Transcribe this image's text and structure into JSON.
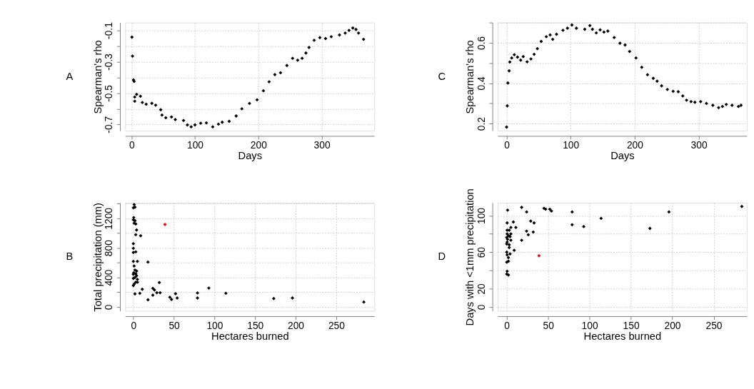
{
  "chart_data": [
    {
      "type": "scatter",
      "xlabel": "Days",
      "ylabel": "Spearman's rho",
      "annotations": [
        "A"
      ],
      "marker": "diamond",
      "grid": true,
      "xlim": [
        -10,
        383
      ],
      "xticks": [
        0,
        100,
        200,
        300
      ],
      "ylim": [
        -0.74,
        -0.05
      ],
      "yticks": [
        -0.1,
        {
          "value": -0.2,
          "label": null
        },
        -0.3,
        {
          "value": -0.4,
          "label": null
        },
        -0.5,
        {
          "value": -0.6,
          "label": null
        },
        -0.7
      ],
      "series": [
        {
          "color": "#000000",
          "x": [
            0.6,
            1.5,
            3,
            4,
            5,
            5,
            8,
            14,
            17,
            23,
            32,
            38,
            46,
            48,
            54,
            63,
            69,
            82,
            88,
            94,
            100,
            109,
            118,
            128,
            137,
            143,
            154,
            165,
            174,
            186,
            198,
            208,
            217,
            226,
            235,
            245,
            254,
            262,
            269,
            275,
            280,
            288,
            297,
            306,
            315,
            328,
            337,
            343,
            349,
            354,
            358,
            366
          ],
          "values": [
            -0.143,
            -0.264,
            -0.416,
            -0.425,
            -0.525,
            -0.552,
            -0.508,
            -0.52,
            -0.56,
            -0.571,
            -0.565,
            -0.577,
            -0.606,
            -0.64,
            -0.657,
            -0.652,
            -0.669,
            -0.675,
            -0.703,
            -0.715,
            -0.703,
            -0.692,
            -0.69,
            -0.715,
            -0.698,
            -0.686,
            -0.68,
            -0.646,
            -0.6,
            -0.566,
            -0.543,
            -0.485,
            -0.428,
            -0.382,
            -0.37,
            -0.324,
            -0.278,
            -0.29,
            -0.278,
            -0.244,
            -0.209,
            -0.163,
            -0.146,
            -0.152,
            -0.14,
            -0.129,
            -0.117,
            -0.1,
            -0.085,
            -0.094,
            -0.117,
            -0.157
          ]
        }
      ]
    },
    {
      "type": "scatter",
      "xlabel": "Days",
      "ylabel": "Spearman's rho",
      "annotations": [
        "C"
      ],
      "marker": "diamond",
      "grid": true,
      "xlim": [
        -14,
        375
      ],
      "xticks": [
        0,
        100,
        200,
        300
      ],
      "ylim": [
        0.165,
        0.7
      ],
      "yticks": [
        0.2,
        {
          "value": 0.3,
          "label": null
        },
        0.4,
        {
          "value": 0.5,
          "label": null
        },
        0.6,
        {
          "value": 0.7,
          "label": null
        }
      ],
      "series": [
        {
          "color": "#000000",
          "x": [
            0,
            1,
            2,
            4,
            5,
            8,
            12,
            17,
            22,
            26,
            32,
            38,
            43,
            48,
            54,
            62,
            68,
            72,
            78,
            88,
            95,
            102,
            109,
            122,
            130,
            134,
            140,
            146,
            152,
            158,
            168,
            177,
            185,
            192,
            202,
            211,
            220,
            229,
            235,
            242,
            251,
            260,
            268,
            275,
            281,
            288,
            294,
            303,
            312,
            322,
            331,
            337,
            343,
            352,
            362,
            366
          ],
          "values": [
            0.183,
            0.288,
            0.401,
            0.461,
            0.505,
            0.525,
            0.541,
            0.529,
            0.514,
            0.532,
            0.506,
            0.52,
            0.543,
            0.571,
            0.607,
            0.63,
            0.639,
            0.617,
            0.642,
            0.662,
            0.672,
            0.688,
            0.672,
            0.667,
            0.685,
            0.667,
            0.649,
            0.664,
            0.653,
            0.658,
            0.626,
            0.598,
            0.589,
            0.557,
            0.525,
            0.479,
            0.442,
            0.424,
            0.41,
            0.387,
            0.369,
            0.36,
            0.358,
            0.337,
            0.316,
            0.309,
            0.306,
            0.309,
            0.3,
            0.291,
            0.279,
            0.285,
            0.295,
            0.291,
            0.285,
            0.291
          ]
        }
      ]
    },
    {
      "type": "scatter",
      "xlabel": "Hectares burned",
      "ylabel": "Total precipitation (mm)",
      "annotations": [
        "B"
      ],
      "marker": "diamond",
      "grid": true,
      "xlim": [
        -10,
        297
      ],
      "xticks": [
        0,
        50,
        100,
        150,
        200,
        250
      ],
      "ylim": [
        -55,
        1410
      ],
      "yticks": [
        0,
        {
          "value": 200,
          "label": null
        },
        400,
        {
          "value": 600,
          "label": null
        },
        800,
        {
          "value": 1000,
          "label": null
        },
        1200,
        {
          "value": 1400,
          "label": null
        }
      ],
      "series": [
        {
          "color": "#000000",
          "x": [
            1,
            0,
            2,
            0.5,
            0,
            2,
            1,
            3,
            4,
            3,
            9,
            0,
            0,
            3,
            0,
            0,
            5,
            18,
            1,
            2,
            4,
            0.5,
            3,
            0,
            4,
            2,
            5,
            0,
            3,
            5,
            1,
            0,
            32,
            11,
            24,
            26,
            29,
            24,
            33,
            2,
            8,
            18,
            45,
            47,
            52,
            54,
            79,
            79,
            93,
            114,
            173,
            196,
            284
          ],
          "values": [
            1386,
            1343,
            1351,
            1210,
            1180,
            1167,
            1134,
            1124,
            1041,
            978,
            963,
            857,
            794,
            746,
            738,
            617,
            617,
            607,
            554,
            499,
            486,
            461,
            449,
            441,
            423,
            398,
            373,
            386,
            335,
            335,
            310,
            290,
            330,
            239,
            252,
            229,
            192,
            159,
            192,
            176,
            184,
            96,
            131,
            101,
            179,
            121,
            189,
            121,
            255,
            184,
            113,
            121,
            66
          ]
        },
        {
          "color": "#ff0000",
          "x": [
            39
          ],
          "values": [
            1116
          ]
        }
      ]
    },
    {
      "type": "scatter",
      "xlabel": "Hectares burned",
      "ylabel": "Days with <1mm precipitation",
      "annotations": [
        "D"
      ],
      "marker": "diamond",
      "grid": true,
      "xlim": [
        -11,
        290
      ],
      "xticks": [
        0,
        50,
        100,
        150,
        200,
        250
      ],
      "ylim": [
        -4.4,
        114
      ],
      "yticks": [
        0,
        20,
        {
          "value": 40,
          "label": null
        },
        60,
        {
          "value": 80,
          "label": null
        },
        100
      ],
      "series": [
        {
          "color": "#000000",
          "x": [
            1,
            18,
            24,
            45,
            47,
            52,
            54,
            79,
            196,
            284,
            0.5,
            8,
            11,
            5,
            29,
            33,
            114,
            79,
            93,
            173,
            0.5,
            3,
            24,
            32,
            26,
            0.5,
            5,
            2,
            0,
            4,
            1,
            5,
            18,
            0.5,
            0,
            3,
            3,
            9,
            0,
            0.5,
            4,
            2,
            2,
            0,
            0.5,
            0,
            2
          ],
          "values": [
            106,
            109,
            104,
            108,
            107,
            107,
            105,
            104,
            104,
            110,
            92,
            93,
            87,
            87,
            94,
            92,
            97,
            90,
            88,
            86,
            84,
            84,
            83,
            82,
            79,
            80,
            80,
            78,
            76,
            77,
            74,
            73,
            73,
            71,
            69,
            68,
            65,
            62,
            60,
            57,
            58,
            54,
            50,
            49,
            39,
            36,
            35
          ]
        },
        {
          "color": "#ff0000",
          "x": [
            39
          ],
          "values": [
            56
          ]
        }
      ]
    }
  ]
}
